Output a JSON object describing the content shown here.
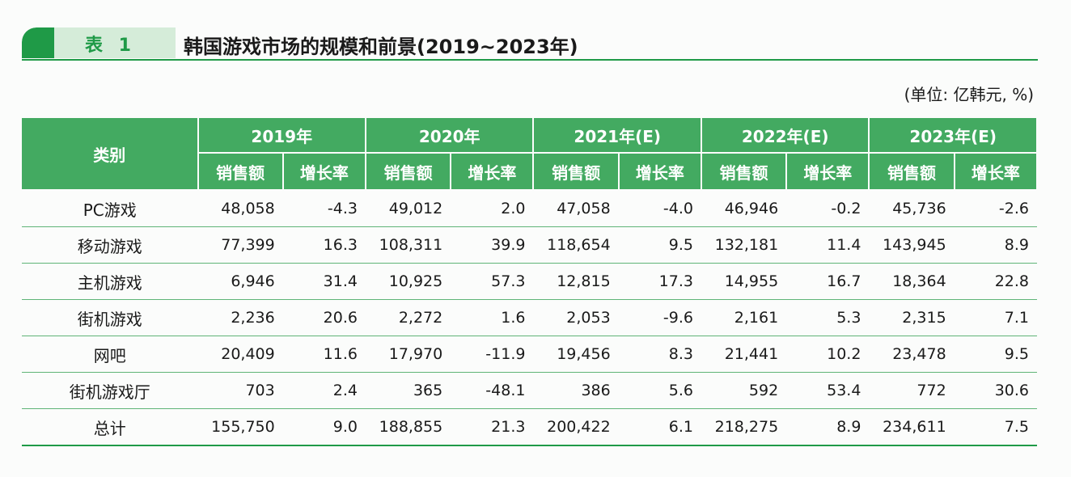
{
  "title": {
    "badge": "表 1",
    "text": "韩国游戏市场的规模和前景(2019~2023年)"
  },
  "unit": "(单位: 亿韩元, %)",
  "table": {
    "category_header": "类别",
    "years": [
      "2019年",
      "2020年",
      "2021年(E)",
      "2022年(E)",
      "2023年(E)"
    ],
    "sales_header": "销售额",
    "growth_header": "增长率",
    "rows": [
      {
        "category": "PC游戏",
        "values": [
          "48,058",
          "-4.3",
          "49,012",
          "2.0",
          "47,058",
          "-4.0",
          "46,946",
          "-0.2",
          "45,736",
          "-2.6"
        ]
      },
      {
        "category": "移动游戏",
        "values": [
          "77,399",
          "16.3",
          "108,311",
          "39.9",
          "118,654",
          "9.5",
          "132,181",
          "11.4",
          "143,945",
          "8.9"
        ]
      },
      {
        "category": "主机游戏",
        "values": [
          "6,946",
          "31.4",
          "10,925",
          "57.3",
          "12,815",
          "17.3",
          "14,955",
          "16.7",
          "18,364",
          "22.8"
        ]
      },
      {
        "category": "街机游戏",
        "values": [
          "2,236",
          "20.6",
          "2,272",
          "1.6",
          "2,053",
          "-9.6",
          "2,161",
          "5.3",
          "2,315",
          "7.1"
        ]
      },
      {
        "category": "网吧",
        "values": [
          "20,409",
          "11.6",
          "17,970",
          "-11.9",
          "19,456",
          "8.3",
          "21,441",
          "10.2",
          "23,478",
          "9.5"
        ]
      },
      {
        "category": "街机游戏厅",
        "values": [
          "703",
          "2.4",
          "365",
          "-48.1",
          "386",
          "5.6",
          "592",
          "53.4",
          "772",
          "30.6"
        ]
      },
      {
        "category": "总计",
        "values": [
          "155,750",
          "9.0",
          "188,855",
          "21.3",
          "200,422",
          "6.1",
          "218,275",
          "8.9",
          "234,611",
          "7.5"
        ]
      }
    ]
  },
  "colors": {
    "accent": "#1f9a47",
    "header_fill": "#43aa61",
    "badge_fill": "#d5ecd9"
  }
}
